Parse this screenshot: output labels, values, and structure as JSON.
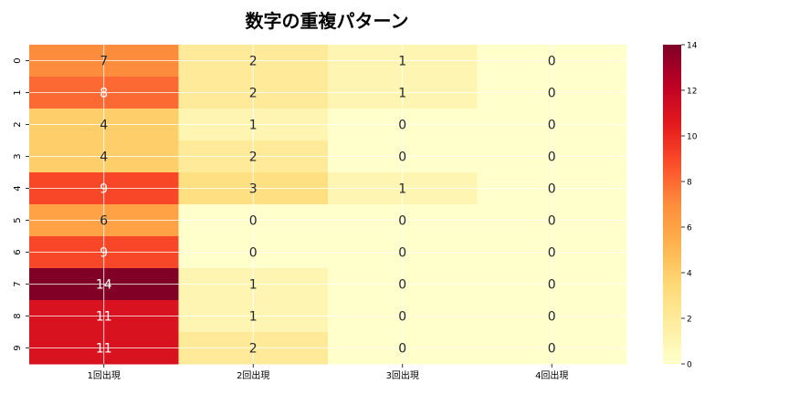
{
  "chart_data": {
    "type": "heatmap",
    "title": "数字の重複パターン",
    "xlabel": "",
    "ylabel": "",
    "columns": [
      "1回出現",
      "2回出現",
      "3回出現",
      "4回出現"
    ],
    "rows": [
      "0",
      "1",
      "2",
      "3",
      "4",
      "5",
      "6",
      "7",
      "8",
      "9"
    ],
    "values": [
      [
        7,
        2,
        1,
        0
      ],
      [
        8,
        2,
        1,
        0
      ],
      [
        4,
        1,
        0,
        0
      ],
      [
        4,
        2,
        0,
        0
      ],
      [
        9,
        3,
        1,
        0
      ],
      [
        6,
        0,
        0,
        0
      ],
      [
        9,
        0,
        0,
        0
      ],
      [
        14,
        1,
        0,
        0
      ],
      [
        11,
        1,
        0,
        0
      ],
      [
        11,
        2,
        0,
        0
      ]
    ],
    "colorbar": {
      "min": 0,
      "max": 14,
      "ticks": [
        0,
        2,
        4,
        6,
        8,
        10,
        12,
        14
      ],
      "colormap": "YlOrRd"
    },
    "grid": true,
    "annotations": true
  }
}
